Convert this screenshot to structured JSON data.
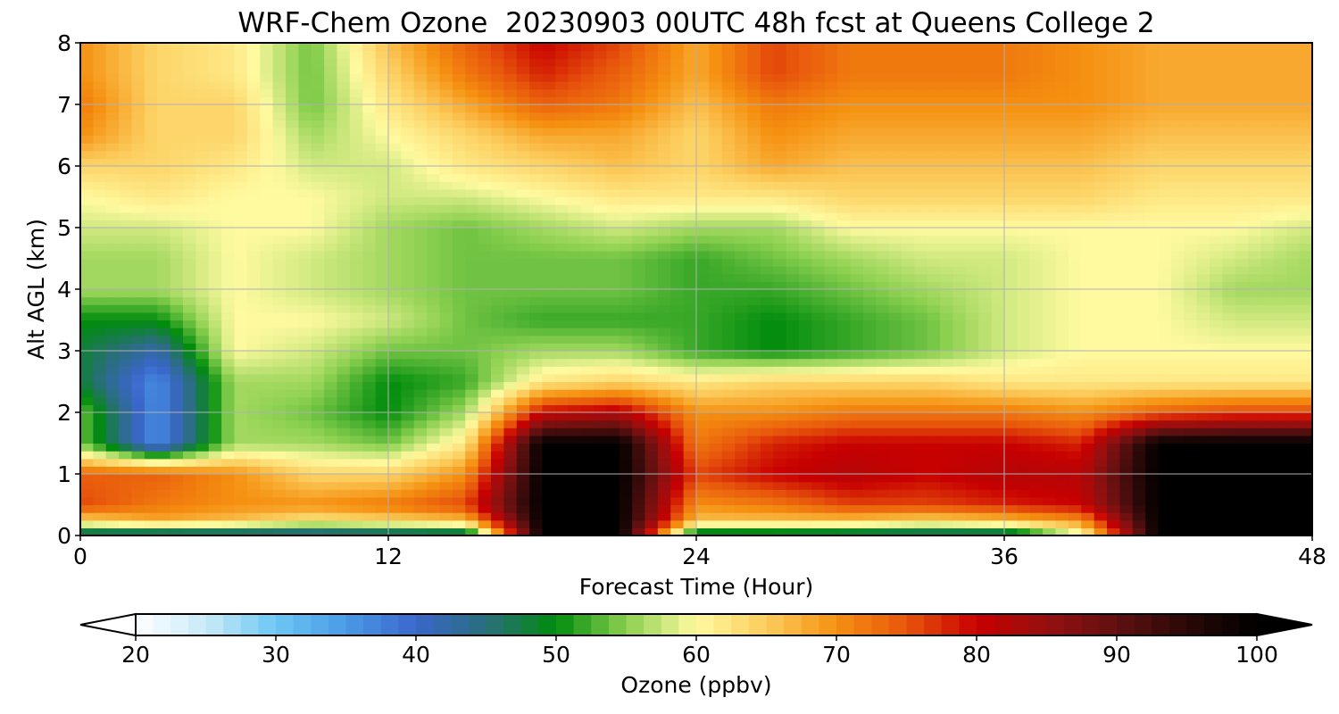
{
  "chart_data": {
    "type": "heatmap",
    "title": "WRF-Chem Ozone  20230903 00UTC 48h fcst at Queens College 2",
    "xlabel": "Forecast Time (Hour)",
    "ylabel": "Alt AGL (km)",
    "xlim": [
      0,
      48
    ],
    "ylim": [
      0,
      8
    ],
    "xticks": [
      "0",
      "12",
      "24",
      "36",
      "48"
    ],
    "yticks": [
      "0",
      "1",
      "2",
      "3",
      "4",
      "5",
      "6",
      "7",
      "8"
    ],
    "grid": true,
    "x": [
      0,
      3,
      6,
      9,
      12,
      15,
      18,
      21,
      24,
      27,
      30,
      33,
      36,
      39,
      42,
      45,
      48
    ],
    "y": [
      0,
      0.25,
      0.5,
      1,
      1.5,
      2,
      2.5,
      3,
      3.5,
      4,
      4.5,
      5,
      5.5,
      6,
      6.5,
      7,
      7.5,
      8
    ],
    "values": [
      [
        42,
        40,
        40,
        40,
        41,
        42,
        100,
        100,
        44,
        44,
        43,
        42,
        42,
        58,
        100,
        100,
        100
      ],
      [
        64,
        68,
        66,
        62,
        64,
        66,
        100,
        100,
        66,
        66,
        66,
        64,
        66,
        70,
        100,
        100,
        100
      ],
      [
        76,
        72,
        70,
        70,
        72,
        76,
        100,
        100,
        70,
        72,
        76,
        76,
        78,
        80,
        100,
        100,
        100
      ],
      [
        74,
        74,
        70,
        64,
        64,
        70,
        100,
        100,
        76,
        80,
        82,
        80,
        82,
        82,
        100,
        100,
        100
      ],
      [
        54,
        36,
        56,
        56,
        54,
        62,
        100,
        100,
        72,
        78,
        80,
        80,
        80,
        78,
        100,
        100,
        100
      ],
      [
        54,
        36,
        56,
        54,
        50,
        56,
        80,
        82,
        70,
        70,
        72,
        72,
        72,
        70,
        74,
        76,
        76
      ],
      [
        48,
        36,
        56,
        56,
        50,
        52,
        62,
        64,
        62,
        64,
        64,
        64,
        62,
        62,
        62,
        62,
        62
      ],
      [
        48,
        42,
        60,
        58,
        54,
        54,
        56,
        56,
        52,
        50,
        52,
        54,
        58,
        60,
        60,
        60,
        60
      ],
      [
        50,
        50,
        60,
        60,
        58,
        54,
        52,
        52,
        52,
        50,
        52,
        54,
        58,
        60,
        60,
        58,
        58
      ],
      [
        56,
        56,
        60,
        58,
        56,
        54,
        54,
        54,
        52,
        52,
        54,
        56,
        58,
        60,
        60,
        56,
        56
      ],
      [
        56,
        56,
        60,
        58,
        56,
        54,
        54,
        54,
        52,
        54,
        56,
        58,
        58,
        60,
        60,
        58,
        56
      ],
      [
        58,
        58,
        60,
        60,
        56,
        54,
        56,
        58,
        56,
        56,
        60,
        60,
        60,
        60,
        60,
        60,
        58
      ],
      [
        60,
        62,
        60,
        60,
        58,
        58,
        60,
        62,
        62,
        62,
        64,
        64,
        64,
        64,
        62,
        62,
        62
      ],
      [
        64,
        64,
        62,
        58,
        58,
        62,
        64,
        66,
        64,
        68,
        66,
        66,
        66,
        66,
        64,
        64,
        64
      ],
      [
        70,
        64,
        64,
        56,
        60,
        64,
        68,
        68,
        64,
        70,
        68,
        68,
        68,
        68,
        66,
        66,
        66
      ],
      [
        72,
        64,
        64,
        54,
        62,
        68,
        74,
        72,
        66,
        72,
        70,
        70,
        70,
        70,
        68,
        68,
        68
      ],
      [
        70,
        64,
        62,
        54,
        64,
        72,
        78,
        74,
        68,
        76,
        72,
        72,
        72,
        70,
        68,
        68,
        68
      ],
      [
        70,
        64,
        62,
        54,
        66,
        74,
        80,
        76,
        68,
        76,
        72,
        72,
        72,
        70,
        68,
        68,
        68
      ]
    ],
    "colorbar": {
      "label": "Ozone  (ppbv)",
      "min": 20,
      "max": 100,
      "extend": "both",
      "ticks": [
        "20",
        "30",
        "40",
        "50",
        "60",
        "70",
        "80",
        "90",
        "100"
      ],
      "stops": [
        {
          "v": 20,
          "c": "#ffffff"
        },
        {
          "v": 25,
          "c": "#c8eaf8"
        },
        {
          "v": 30,
          "c": "#6cc6f3"
        },
        {
          "v": 35,
          "c": "#4a9ae6"
        },
        {
          "v": 40,
          "c": "#3a66cc"
        },
        {
          "v": 45,
          "c": "#2a6e7c"
        },
        {
          "v": 50,
          "c": "#008c0c"
        },
        {
          "v": 55,
          "c": "#8cd050"
        },
        {
          "v": 60,
          "c": "#fffaa0"
        },
        {
          "v": 65,
          "c": "#fccc5c"
        },
        {
          "v": 70,
          "c": "#f59010"
        },
        {
          "v": 75,
          "c": "#e8560c"
        },
        {
          "v": 80,
          "c": "#c80000"
        },
        {
          "v": 85,
          "c": "#961010"
        },
        {
          "v": 90,
          "c": "#601010"
        },
        {
          "v": 95,
          "c": "#2a0808"
        },
        {
          "v": 100,
          "c": "#000000"
        }
      ]
    }
  }
}
